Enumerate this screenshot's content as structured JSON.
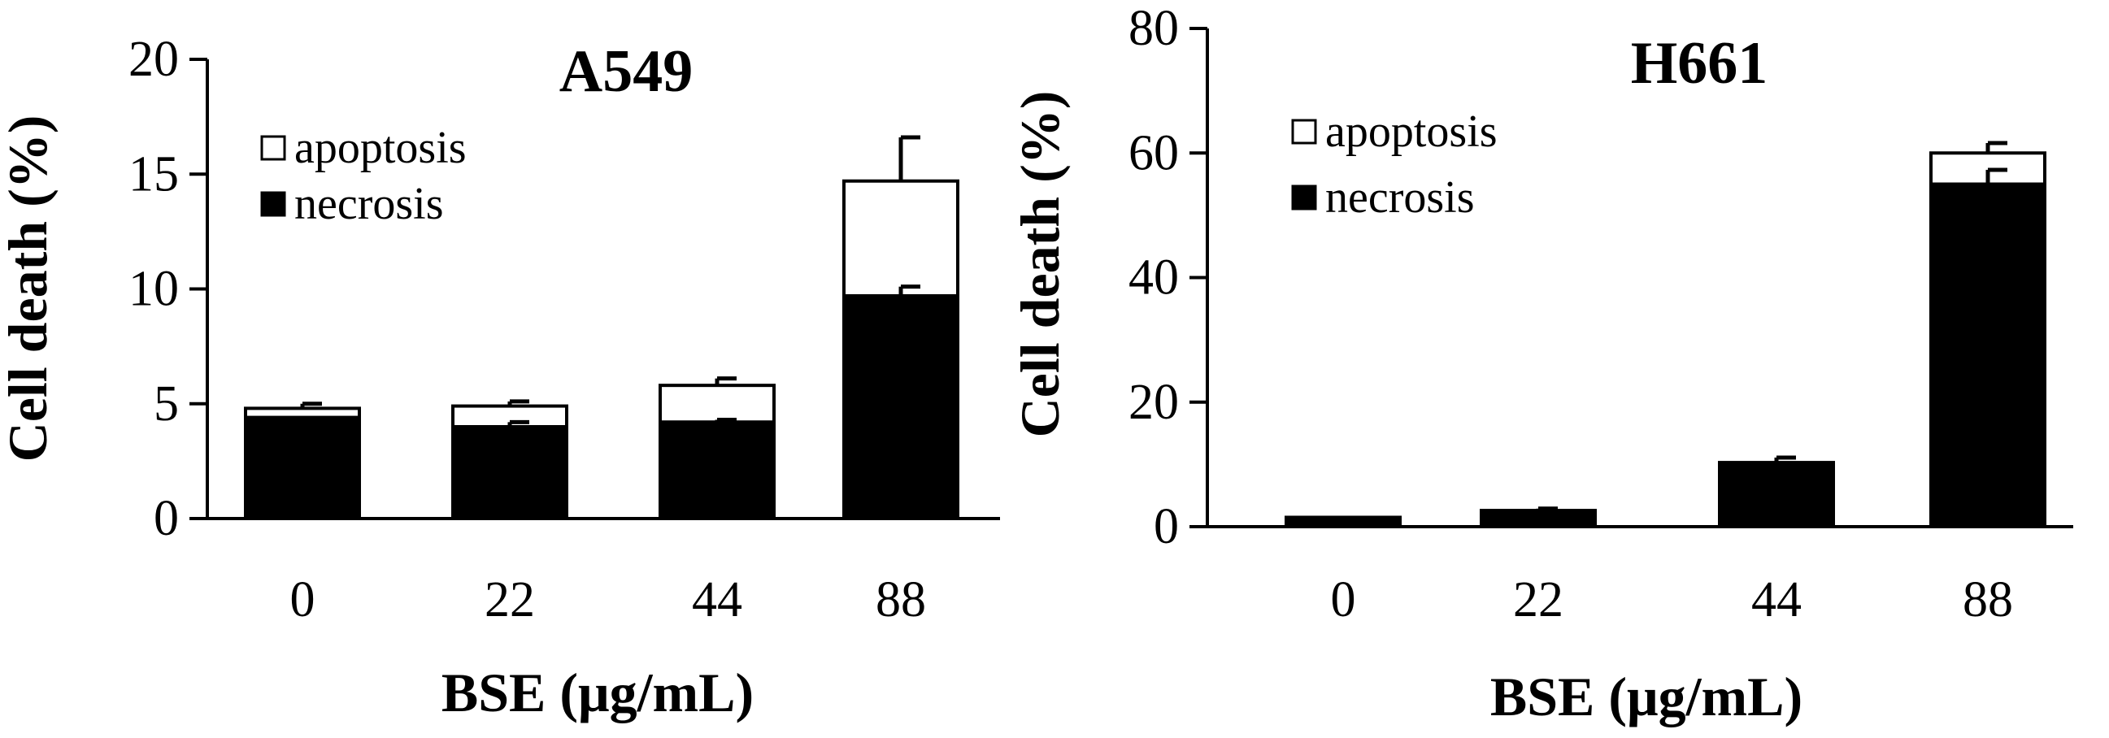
{
  "chart_data": [
    {
      "type": "bar",
      "stacked": true,
      "title": "A549",
      "xlabel": "BSE (μg/mL)",
      "ylabel": "Cell death (%)",
      "categories": [
        "0",
        "22",
        "44",
        "88"
      ],
      "ylim": [
        0,
        20
      ],
      "yticks": [
        0,
        5,
        10,
        15,
        20
      ],
      "yticks_labels": [
        "0",
        "5",
        "10",
        "15",
        "20"
      ],
      "legend_position": "upper-left",
      "series": [
        {
          "name": "necrosis",
          "color": "#000000",
          "values": [
            4.4,
            4.0,
            4.2,
            9.7
          ],
          "errors": [
            0.0,
            0.2,
            0.1,
            0.4
          ]
        },
        {
          "name": "apoptosis",
          "color": "#ffffff",
          "values": [
            0.4,
            0.9,
            1.6,
            5.0
          ],
          "errors": [
            0.2,
            0.2,
            0.3,
            1.9
          ]
        }
      ],
      "legend": [
        "apoptosis",
        "necrosis"
      ]
    },
    {
      "type": "bar",
      "stacked": true,
      "title": "H661",
      "xlabel": "BSE (μg/mL)",
      "ylabel": "Cell death (%)",
      "categories": [
        "0",
        "22",
        "44",
        "88"
      ],
      "ylim": [
        0,
        80
      ],
      "yticks": [
        0,
        20,
        40,
        60,
        80
      ],
      "yticks_labels": [
        "0",
        "20",
        "40",
        "60",
        "80"
      ],
      "legend_position": "upper-left",
      "series": [
        {
          "name": "necrosis",
          "color": "#000000",
          "values": [
            1.5,
            2.6,
            10.3,
            55.0
          ],
          "errors": [
            0.0,
            0.3,
            0.8,
            2.3
          ]
        },
        {
          "name": "apoptosis",
          "color": "#ffffff",
          "values": [
            0.0,
            0.0,
            0.0,
            5.0
          ],
          "errors": [
            0.0,
            0.0,
            0.0,
            1.6
          ]
        }
      ],
      "legend": [
        "apoptosis",
        "necrosis"
      ]
    }
  ]
}
